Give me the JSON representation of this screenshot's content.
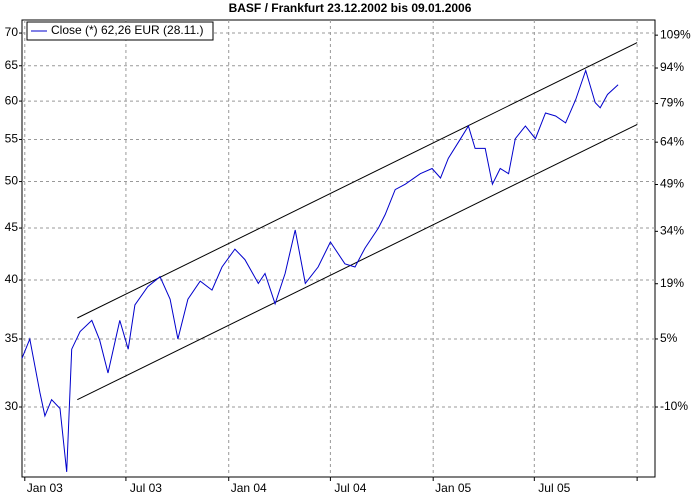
{
  "chart_data": {
    "type": "line",
    "title": "BASF / Frankfurt 23.12.2002 bis 09.01.2006",
    "x": [
      "2002-12-27",
      "2003-01-10",
      "2003-01-28",
      "2003-02-06",
      "2003-02-18",
      "2003-03-05",
      "2003-03-17",
      "2003-03-26",
      "2003-04-10",
      "2003-05-01",
      "2003-05-15",
      "2003-05-30",
      "2003-06-20",
      "2003-07-05",
      "2003-07-17",
      "2003-08-09",
      "2003-08-31",
      "2003-09-18",
      "2003-10-02",
      "2003-10-20",
      "2003-11-11",
      "2003-12-02",
      "2003-12-20",
      "2004-01-12",
      "2004-01-30",
      "2004-02-23",
      "2004-03-06",
      "2004-03-24",
      "2004-04-11",
      "2004-04-29",
      "2004-05-17",
      "2004-06-09",
      "2004-07-01",
      "2004-07-27",
      "2004-08-14",
      "2004-09-01",
      "2004-09-25",
      "2004-10-07",
      "2004-10-25",
      "2004-11-12",
      "2004-12-09",
      "2004-12-30",
      "2005-01-14",
      "2005-01-28",
      "2005-02-19",
      "2005-03-05",
      "2005-03-17",
      "2005-04-04",
      "2005-04-17",
      "2005-05-01",
      "2005-05-16",
      "2005-05-28",
      "2005-06-15",
      "2005-07-03",
      "2005-07-21",
      "2005-08-08",
      "2005-08-26",
      "2005-09-13",
      "2005-10-01",
      "2005-10-18",
      "2005-10-27",
      "2005-11-09",
      "2005-11-28"
    ],
    "series": [
      {
        "name": "Close (*) 62,26 EUR (28.11.)",
        "color": "#0000cc",
        "values": [
          33.5,
          35.0,
          31.0,
          29.4,
          30.5,
          29.9,
          25.9,
          34.2,
          35.6,
          36.5,
          34.9,
          32.4,
          36.5,
          34.2,
          37.8,
          39.4,
          40.3,
          38.3,
          35.0,
          38.3,
          39.9,
          39.1,
          41.2,
          42.9,
          41.9,
          39.7,
          40.6,
          37.9,
          40.6,
          44.8,
          39.7,
          41.2,
          43.6,
          41.5,
          41.2,
          43.0,
          45.0,
          46.4,
          49.1,
          49.7,
          50.9,
          51.5,
          50.4,
          52.7,
          55.1,
          56.7,
          53.9,
          53.9,
          49.7,
          51.5,
          50.9,
          55.1,
          56.7,
          55.1,
          58.4,
          58.0,
          57.1,
          60.2,
          64.3,
          59.8,
          59.1,
          60.9,
          62.26
        ]
      }
    ],
    "trend_lines": [
      {
        "x": [
          "2003-04-05",
          "2006-01-01"
        ],
        "values": [
          36.7,
          68.5
        ]
      },
      {
        "x": [
          "2003-04-05",
          "2006-01-01"
        ],
        "values": [
          30.5,
          56.9
        ]
      }
    ],
    "xlim": [
      "2002-12-27",
      "2006-02-02"
    ],
    "xticks": [
      {
        "value": "2003-01-01",
        "label": "Jan 03"
      },
      {
        "value": "2003-07-01",
        "label": "Jul 03"
      },
      {
        "value": "2004-01-01",
        "label": "Jan 04"
      },
      {
        "value": "2004-07-01",
        "label": "Jul 04"
      },
      {
        "value": "2005-01-01",
        "label": "Jan 05"
      },
      {
        "value": "2005-07-01",
        "label": "Jul 05"
      },
      {
        "value": "2006-01-01",
        "label": null
      }
    ],
    "ylim": [
      25.6,
      72.1
    ],
    "yticks": [
      30,
      35,
      40,
      45,
      50,
      55,
      60,
      65,
      70
    ],
    "y2lim": [
      -23.2,
      116.3
    ],
    "y2ticks": [
      {
        "value": 109,
        "label": "109%"
      },
      {
        "value": 94,
        "label": "94%"
      },
      {
        "value": 79,
        "label": "79%"
      },
      {
        "value": 64,
        "label": "64%"
      },
      {
        "value": 49,
        "label": "49%"
      },
      {
        "value": 34,
        "label": "34%"
      },
      {
        "value": 19,
        "label": "19%"
      },
      {
        "value": 5,
        "label": "5%"
      },
      {
        "value": -10,
        "label": "-10%"
      }
    ],
    "log_scale": true,
    "grid": true,
    "legend": "top-left"
  }
}
